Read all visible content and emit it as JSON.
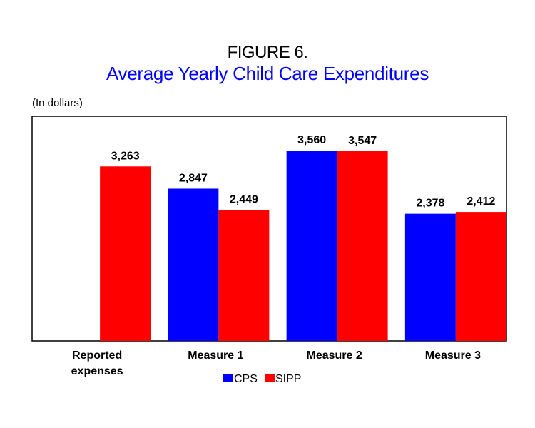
{
  "chart_data": {
    "type": "bar",
    "title": "FIGURE 6.",
    "subtitle": "Average Yearly Child Care Expenditures",
    "ylabel": "(In dollars)",
    "xlabel": "",
    "categories": [
      [
        "Reported",
        "expenses"
      ],
      [
        "Measure 1"
      ],
      [
        "Measure 2"
      ],
      [
        "Measure 3"
      ]
    ],
    "series": [
      {
        "name": "CPS",
        "color": "#0000ff",
        "values": [
          null,
          2847,
          3560,
          2378
        ],
        "labels": [
          null,
          "2,847",
          "3,560",
          "2,378"
        ]
      },
      {
        "name": "SIPP",
        "color": "#ff0000",
        "values": [
          3263,
          2449,
          3547,
          2412
        ],
        "labels": [
          "3,263",
          "2,449",
          "3,547",
          "2,412"
        ]
      }
    ],
    "ylim": [
      0,
      4200
    ],
    "grid": false,
    "legend": "bottom-center"
  }
}
